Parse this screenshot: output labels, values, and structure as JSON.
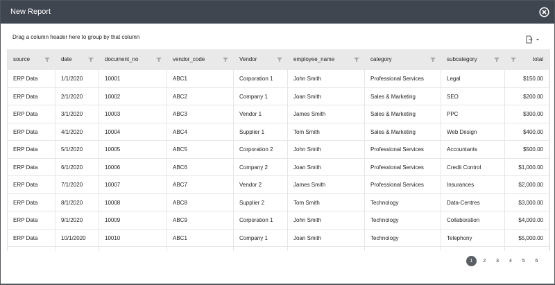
{
  "header": {
    "title": "New Report"
  },
  "toolbar": {
    "group_hint": "Drag a column header here to group by that column"
  },
  "table": {
    "columns": [
      "source",
      "date",
      "document_no",
      "vendor_code",
      "Vendor",
      "employee_name",
      "category",
      "subcategory",
      "total"
    ],
    "rows": [
      [
        "ERP Data",
        "1/1/2020",
        "10001",
        "ABC1",
        "Corporation 1",
        "John Smith",
        "Professional Services",
        "Legal",
        "$150.00"
      ],
      [
        "ERP Data",
        "2/1/2020",
        "10002",
        "ABC2",
        "Company 1",
        "Joan Smith",
        "Sales & Marketing",
        "SEO",
        "$200.00"
      ],
      [
        "ERP Data",
        "3/1/2020",
        "10003",
        "ABC3",
        "Vendor 1",
        "James Smith",
        "Sales & Marketing",
        "PPC",
        "$300.00"
      ],
      [
        "ERP Data",
        "4/1/2020",
        "10004",
        "ABC4",
        "Supplier 1",
        "Tom Smith",
        "Sales & Marketing",
        "Web Design",
        "$400.00"
      ],
      [
        "ERP Data",
        "5/1/2020",
        "10005",
        "ABC5",
        "Corporation 2",
        "John Smith",
        "Professional Services",
        "Accountants",
        "$500.00"
      ],
      [
        "ERP Data",
        "6/1/2020",
        "10006",
        "ABC6",
        "Company 2",
        "Joan Smith",
        "Professional Services",
        "Credit Control",
        "$1,000.00"
      ],
      [
        "ERP Data",
        "7/1/2020",
        "10007",
        "ABC7",
        "Vendor 2",
        "James Smith",
        "Professional Services",
        "Insurances",
        "$2,000.00"
      ],
      [
        "ERP Data",
        "8/1/2020",
        "10008",
        "ABC8",
        "Supplier 2",
        "Tom Smith",
        "Technology",
        "Data-Centres",
        "$3,000.00"
      ],
      [
        "ERP Data",
        "9/1/2020",
        "10009",
        "ABC9",
        "Corporation 1",
        "John Smith",
        "Technology",
        "Collaboration",
        "$4,000.00"
      ],
      [
        "ERP Data",
        "10/1/2020",
        "10010",
        "ABC1",
        "Company 1",
        "Joan Smith",
        "Technology",
        "Telephony",
        "$5,000.00"
      ]
    ]
  },
  "pagination": {
    "pages": [
      "1",
      "2",
      "3",
      "4",
      "5",
      "6"
    ]
  }
}
